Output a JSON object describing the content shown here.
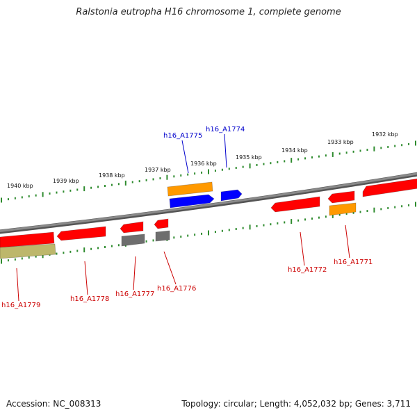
{
  "title": "Ralstonia eutropha H16 chromosome 1, complete genome",
  "footer": {
    "accession": "Accession: NC_008313",
    "summary": "Topology: circular; Length: 4,052,032 bp; Genes: 3,711"
  },
  "colors": {
    "backbone": "#8a8a8a",
    "tick": "#2e8b2e",
    "red": "#ff0000",
    "orange": "#ff9900",
    "blue": "#0000ff",
    "gray": "#6e6e6e",
    "khaki": "#bdb76b",
    "label_red": "#cc0000",
    "label_blue": "#0000cc"
  },
  "scale_labels": [
    "1940 kbp",
    "1939 kbp",
    "1938 kbp",
    "1937 kbp",
    "1936 kbp",
    "1935 kbp",
    "1934 kbp",
    "1933 kbp",
    "1932 kbp"
  ],
  "gene_labels": [
    {
      "text": "h16_A1775",
      "color": "blue"
    },
    {
      "text": "h16_A1774",
      "color": "blue"
    },
    {
      "text": "h16_A1779",
      "color": "red"
    },
    {
      "text": "h16_A1778",
      "color": "red"
    },
    {
      "text": "h16_A1777",
      "color": "red"
    },
    {
      "text": "h16_A1776",
      "color": "red"
    },
    {
      "text": "h16_A1772",
      "color": "red"
    },
    {
      "text": "h16_A1771",
      "color": "red"
    }
  ]
}
